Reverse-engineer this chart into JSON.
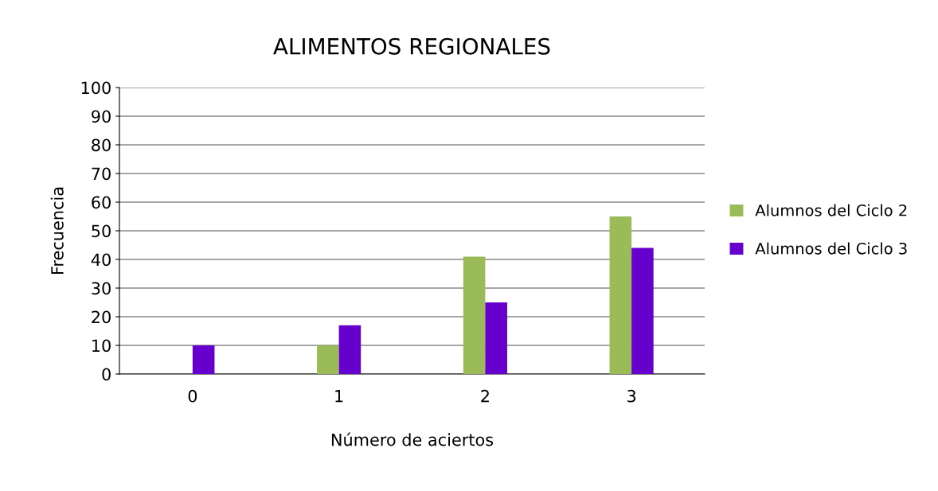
{
  "chart_data": {
    "type": "bar",
    "title": "ALIMENTOS REGIONALES",
    "xlabel": "Número de aciertos",
    "ylabel": "Frecuencia",
    "categories": [
      "0",
      "1",
      "2",
      "3"
    ],
    "series": [
      {
        "name": "Alumnos del Ciclo 2",
        "color": "#9bbb59",
        "values": [
          0,
          10,
          41,
          55
        ]
      },
      {
        "name": "Alumnos del Ciclo 3",
        "color": "#6600cc",
        "values": [
          10,
          17,
          25,
          44
        ]
      }
    ],
    "ylim": [
      0,
      100
    ],
    "yticks": [
      0,
      10,
      20,
      30,
      40,
      50,
      60,
      70,
      80,
      90,
      100
    ],
    "grid": "y",
    "legend": "right"
  }
}
